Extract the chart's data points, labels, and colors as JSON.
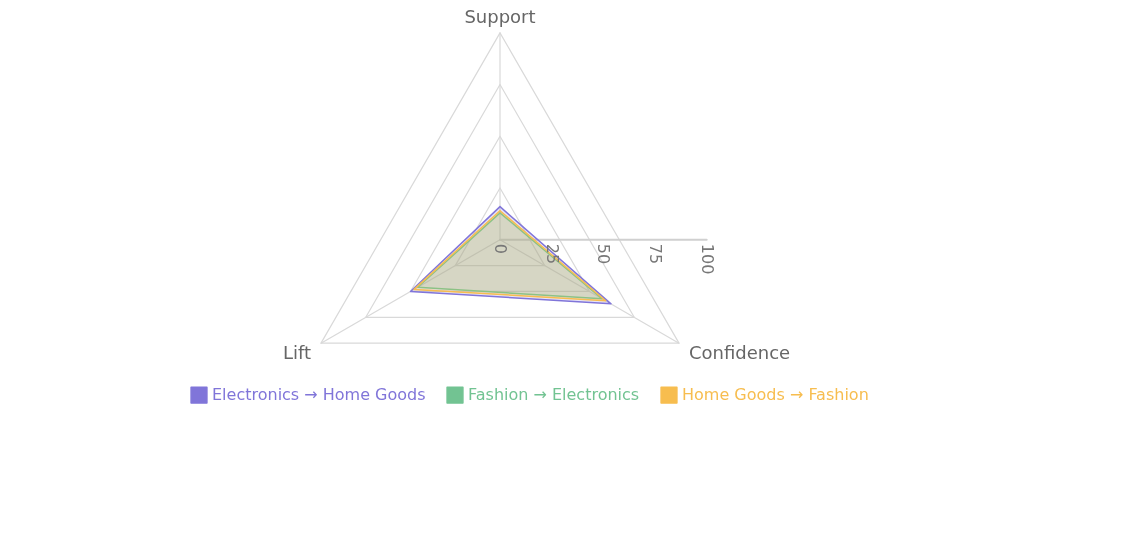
{
  "chart_data": {
    "type": "radar",
    "categories": [
      "Support",
      "Confidence",
      "Lift"
    ],
    "series": [
      {
        "name": "Electronics → Home Goods",
        "color": "#8075d9",
        "values": [
          16,
          62,
          50
        ]
      },
      {
        "name": "Fashion → Electronics",
        "color": "#72c392",
        "values": [
          13,
          57,
          46
        ]
      },
      {
        "name": "Home Goods → Fashion",
        "color": "#f7bd4f",
        "values": [
          14,
          59,
          48
        ]
      }
    ],
    "ylim": [
      0,
      100
    ],
    "yticks": [
      0,
      25,
      50,
      75,
      100
    ],
    "grid": true,
    "legend": "bottom"
  }
}
